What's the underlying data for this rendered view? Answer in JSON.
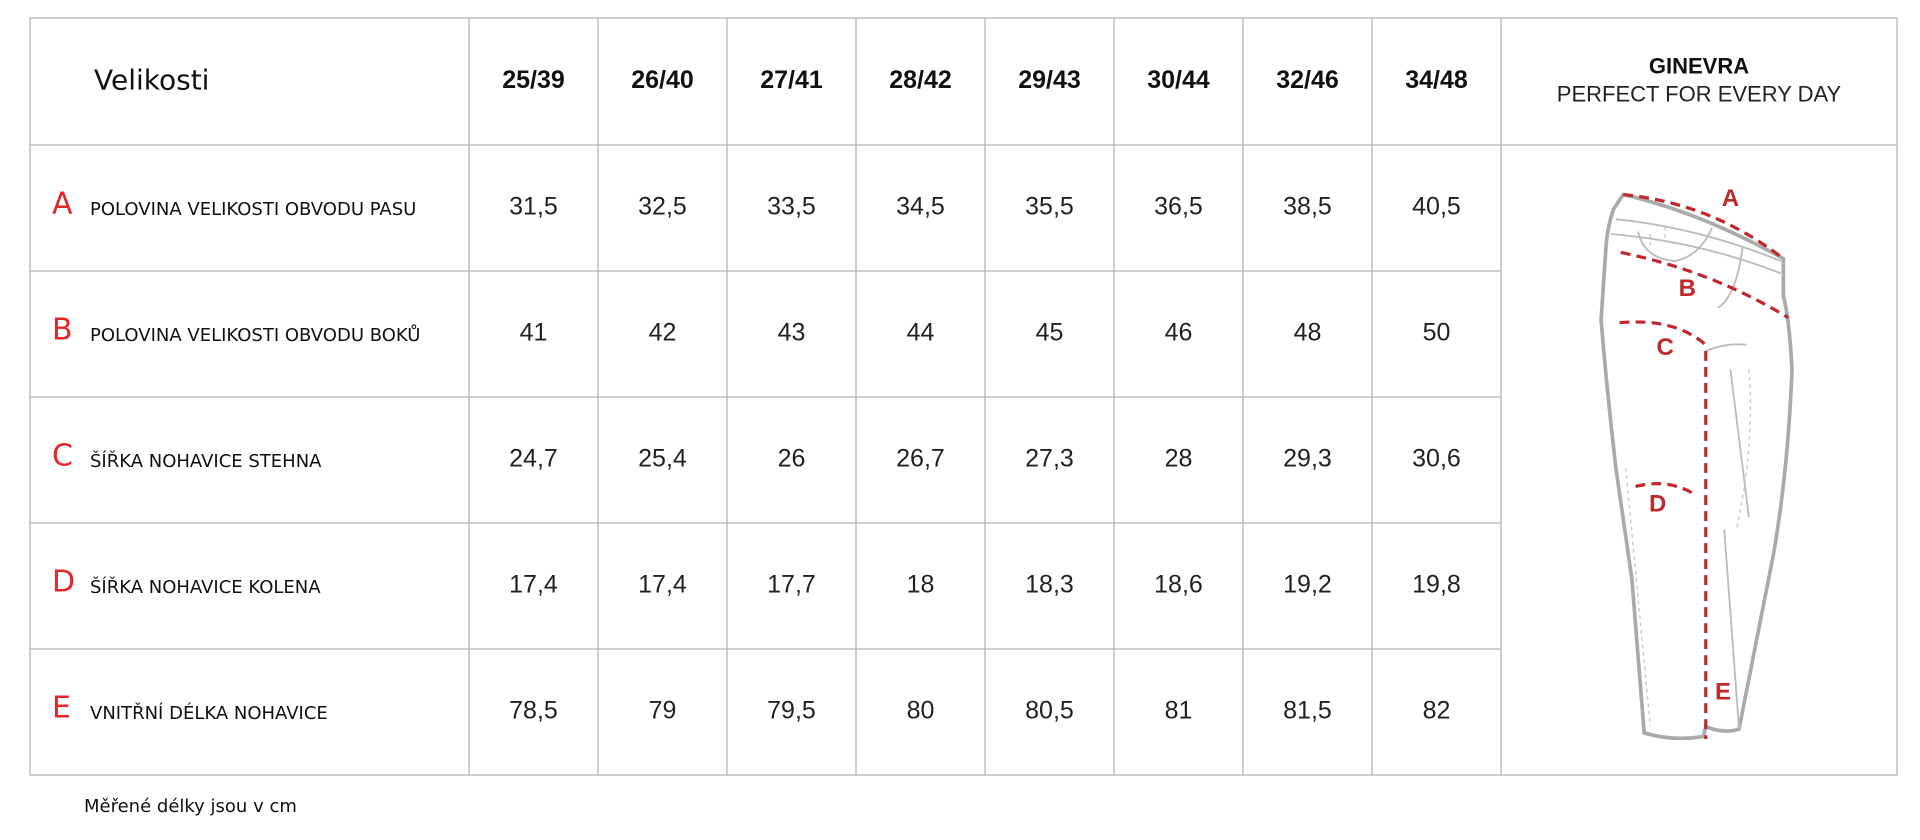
{
  "header": {
    "title": "Velikosti",
    "sizes": [
      "25/39",
      "26/40",
      "27/41",
      "28/42",
      "29/43",
      "30/44",
      "32/46",
      "34/48"
    ],
    "brand": "GINEVRA",
    "tagline": "PERFECT FOR EVERY DAY"
  },
  "rows": [
    {
      "letter": "A",
      "label": "POLOVINA VELIKOSTI OBVODU PASU",
      "values": [
        "31,5",
        "32,5",
        "33,5",
        "34,5",
        "35,5",
        "36,5",
        "38,5",
        "40,5"
      ]
    },
    {
      "letter": "B",
      "label": "POLOVINA VELIKOSTI OBVODU BOKŮ",
      "values": [
        "41",
        "42",
        "43",
        "44",
        "45",
        "46",
        "48",
        "50"
      ]
    },
    {
      "letter": "C",
      "label": "ŠÍŘKA NOHAVICE STEHNA",
      "values": [
        "24,7",
        "25,4",
        "26",
        "26,7",
        "27,3",
        "28",
        "29,3",
        "30,6"
      ]
    },
    {
      "letter": "D",
      "label": "ŠÍŘKA NOHAVICE KOLENA",
      "values": [
        "17,4",
        "17,4",
        "17,7",
        "18",
        "18,3",
        "18,6",
        "19,2",
        "19,8"
      ]
    },
    {
      "letter": "E",
      "label": "VNITŘNÍ DÉLKA NOHAVICE",
      "values": [
        "78,5",
        "79",
        "79,5",
        "80",
        "80,5",
        "81",
        "81,5",
        "82"
      ]
    }
  ],
  "footnote": "Měřené délky jsou v cm"
}
